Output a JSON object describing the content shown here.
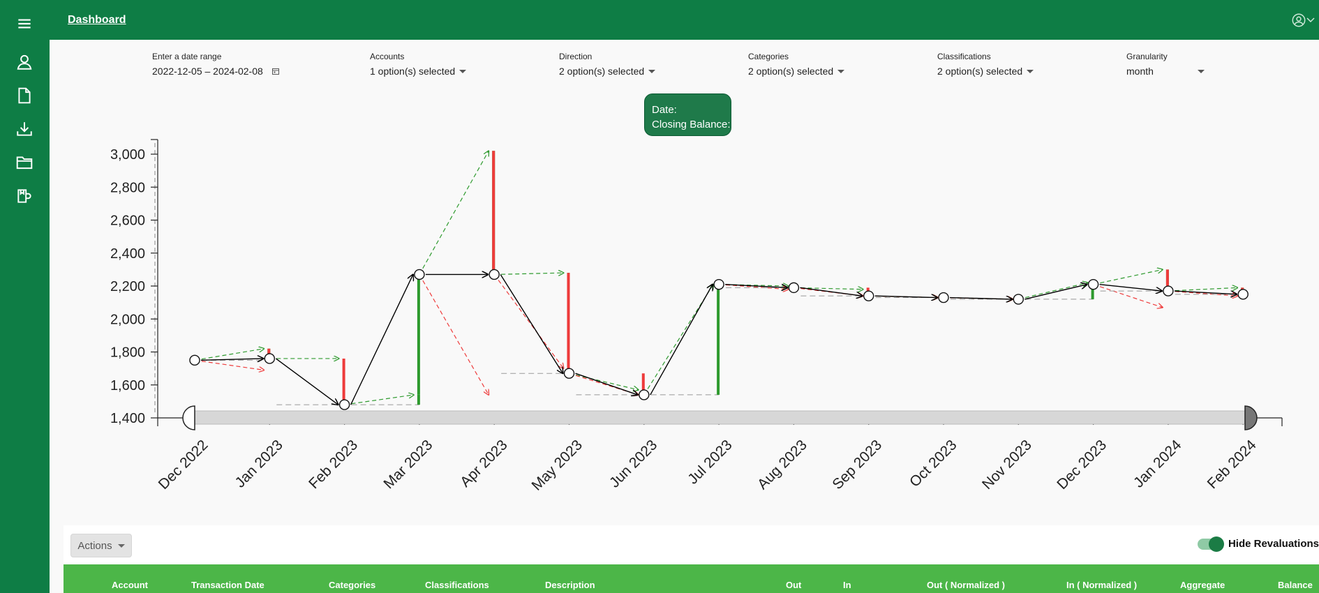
{
  "header": {
    "breadcrumb": "Dashboard"
  },
  "sidebar": {
    "items": [
      {
        "icon": "menu-icon"
      },
      {
        "icon": "user-icon"
      },
      {
        "icon": "document-icon"
      },
      {
        "icon": "download-icon"
      },
      {
        "icon": "folder-icon"
      },
      {
        "icon": "import-icon"
      }
    ]
  },
  "filters": {
    "date_range": {
      "label": "Enter a date range",
      "value": "2022-12-05 – 2024-02-08"
    },
    "accounts": {
      "label": "Accounts",
      "value": "1 option(s) selected"
    },
    "direction": {
      "label": "Direction",
      "value": "2 option(s) selected"
    },
    "categories": {
      "label": "Categories",
      "value": "2 option(s) selected"
    },
    "classifications": {
      "label": "Classifications",
      "value": "2 option(s) selected"
    },
    "granularity": {
      "label": "Granularity",
      "value": "month"
    }
  },
  "tooltip": {
    "date_label": "Date:",
    "balance_label": "Closing Balance:"
  },
  "chart_data": {
    "type": "line",
    "x": [
      "Dec 2022",
      "Jan 2023",
      "Feb 2023",
      "Mar 2023",
      "Apr 2023",
      "May 2023",
      "Jun 2023",
      "Jul 2023",
      "Aug 2023",
      "Sep 2023",
      "Oct 2023",
      "Nov 2023",
      "Dec 2023",
      "Jan 2024",
      "Feb 2024"
    ],
    "series": [
      {
        "values": [
          1750,
          1760,
          1480,
          2270,
          2270,
          1670,
          1540,
          2210,
          2190,
          2140,
          2130,
          2120,
          2210,
          2170,
          2150
        ]
      }
    ],
    "inflow": [
      1820,
      3020,
      2280,
      1570,
      2220,
      2300,
      2190
    ],
    "outflow": [
      1690,
      1760,
      1540,
      1700,
      2180,
      2070,
      2140
    ],
    "ylim": [
      1400,
      3000
    ],
    "yticks": [
      "1,400",
      "1,600",
      "1,800",
      "2,000",
      "2,200",
      "2,400",
      "2,600",
      "2,800",
      "3,000"
    ],
    "colors": {
      "in": "#2e9a2e",
      "out": "#ee3b3b",
      "line": "#000000"
    }
  },
  "table": {
    "actions_label": "Actions",
    "toggle_label": "Hide Revaluations",
    "columns": [
      "Account",
      "Transaction Date",
      "Categories",
      "Classifications",
      "Description",
      "Out",
      "In",
      "Out ( Normalized )",
      "In ( Normalized )",
      "Aggregate",
      "Balance"
    ]
  }
}
